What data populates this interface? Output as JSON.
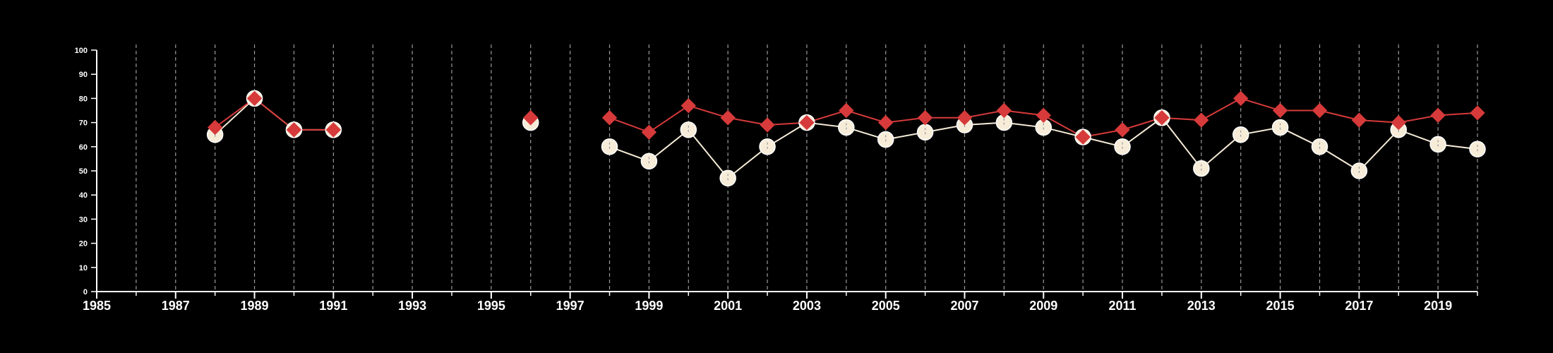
{
  "chart_data": {
    "type": "line",
    "title": "",
    "xlabel": "",
    "ylabel": "",
    "xlim": [
      1985,
      2020
    ],
    "ylim": [
      0,
      100
    ],
    "x_ticks": [
      1985,
      1987,
      1989,
      1991,
      1993,
      1995,
      1997,
      1999,
      2001,
      2003,
      2005,
      2007,
      2009,
      2011,
      2013,
      2015,
      2017,
      2019
    ],
    "x_tick_labels": [
      "1985",
      "1987",
      "1989",
      "1991",
      "1993",
      "1995",
      "1997",
      "1999",
      "2001",
      "2003",
      "2005",
      "2007",
      "2009",
      "2011",
      "2013",
      "2015",
      "2017",
      "2019"
    ],
    "y_ticks": [
      0,
      10,
      20,
      30,
      40,
      50,
      60,
      70,
      80,
      90,
      100
    ],
    "y_tick_labels": [
      "0",
      "10",
      "20",
      "30",
      "40",
      "50",
      "60",
      "70",
      "80",
      "90",
      "100"
    ],
    "grid": "vertical dashed lines at every year",
    "legend": "none",
    "x": [
      1988,
      1989,
      1990,
      1991,
      1992,
      1993,
      1994,
      1995,
      1996,
      1997,
      1998,
      1999,
      2000,
      2001,
      2002,
      2003,
      2004,
      2005,
      2006,
      2007,
      2008,
      2009,
      2010,
      2011,
      2012,
      2013,
      2014,
      2015,
      2016,
      2017,
      2018,
      2019,
      2020
    ],
    "series": [
      {
        "marker": "diamond",
        "color": "#d63a3a",
        "values": [
          68,
          80,
          67,
          67,
          null,
          null,
          null,
          null,
          72,
          null,
          72,
          66,
          77,
          72,
          69,
          70,
          75,
          70,
          72,
          72,
          75,
          73,
          64,
          67,
          72,
          71,
          80,
          75,
          75,
          71,
          70,
          73,
          74
        ]
      },
      {
        "marker": "circle",
        "color": "#f6ecd8",
        "values": [
          65,
          80,
          67,
          67,
          null,
          null,
          null,
          null,
          70,
          null,
          60,
          54,
          67,
          47,
          60,
          70,
          68,
          63,
          66,
          69,
          70,
          68,
          64,
          60,
          72,
          51,
          65,
          68,
          60,
          50,
          67,
          61,
          59
        ]
      }
    ]
  }
}
